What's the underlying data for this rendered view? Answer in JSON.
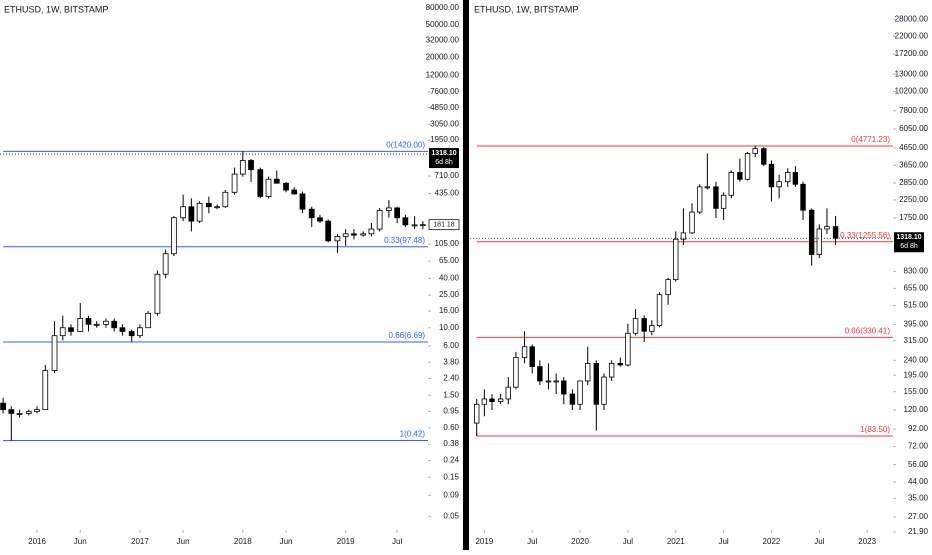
{
  "chart_data": [
    {
      "type": "candlestick",
      "title": "ETHUSD, 1W, BITSTAMP",
      "log_scale": true,
      "xlim": [
        2015.64,
        2019.8
      ],
      "ylim": [
        0.034,
        100000
      ],
      "xticks": [
        2016,
        {
          "value": 2016.42,
          "label": "Jun"
        },
        2017,
        {
          "value": 2017.42,
          "label": "Jun"
        },
        2018,
        {
          "value": 2018.42,
          "label": "Jun"
        },
        2019,
        {
          "value": 2019.5,
          "label": "Jul"
        }
      ],
      "yticks": [
        {
          "value": 80000,
          "label": "80000.00"
        },
        {
          "value": 50000,
          "label": "50000.00"
        },
        {
          "value": 32000,
          "label": "32000.00"
        },
        {
          "value": 20000,
          "label": "20000.00"
        },
        {
          "value": 12000,
          "label": "12000.00"
        },
        {
          "value": 7600,
          "label": "7600.00"
        },
        {
          "value": 4850,
          "label": "4850.00"
        },
        {
          "value": 3050,
          "label": "3050.00"
        },
        {
          "value": 1950,
          "label": "1950.00"
        },
        {
          "value": 710,
          "label": "710.00"
        },
        {
          "value": 435,
          "label": "435.00"
        },
        {
          "value": 105,
          "label": "105.00"
        },
        {
          "value": 65,
          "label": "65.00"
        },
        {
          "value": 40,
          "label": "40.00"
        },
        {
          "value": 25,
          "label": "25.00"
        },
        {
          "value": 16,
          "label": "16.00"
        },
        {
          "value": 10,
          "label": "10.00"
        },
        {
          "value": 6,
          "label": "6.00"
        },
        {
          "value": 3.8,
          "label": "3.80"
        },
        {
          "value": 2.4,
          "label": "2.40"
        },
        {
          "value": 1.5,
          "label": "1.50"
        },
        {
          "value": 0.95,
          "label": "0.95"
        },
        {
          "value": 0.6,
          "label": "0.60"
        },
        {
          "value": 0.38,
          "label": "0.38"
        },
        {
          "value": 0.24,
          "label": "0.24"
        },
        {
          "value": 0.15,
          "label": "0.15"
        },
        {
          "value": 0.09,
          "label": "0.09"
        },
        {
          "value": 0.05,
          "label": "0.05"
        }
      ],
      "x": [
        2015.67,
        2015.75,
        2015.83,
        2015.92,
        2016.0,
        2016.08,
        2016.17,
        2016.25,
        2016.33,
        2016.42,
        2016.5,
        2016.58,
        2016.67,
        2016.75,
        2016.83,
        2016.92,
        2017.0,
        2017.08,
        2017.17,
        2017.25,
        2017.33,
        2017.42,
        2017.5,
        2017.58,
        2017.67,
        2017.75,
        2017.83,
        2017.92,
        2018.0,
        2018.08,
        2018.17,
        2018.25,
        2018.33,
        2018.42,
        2018.5,
        2018.58,
        2018.67,
        2018.75,
        2018.83,
        2018.92,
        2019.0,
        2019.08,
        2019.17,
        2019.25,
        2019.33,
        2019.42,
        2019.5,
        2019.58,
        2019.67,
        2019.75
      ],
      "open": [
        1.2,
        1.0,
        0.9,
        0.9,
        0.95,
        1.0,
        3.0,
        8,
        10,
        9,
        13,
        11,
        11,
        12,
        10,
        9,
        8,
        10,
        15,
        45,
        80,
        220,
        300,
        200,
        330,
        300,
        300,
        450,
        750,
        1100,
        850,
        400,
        650,
        580,
        480,
        430,
        280,
        220,
        200,
        115,
        130,
        140,
        135,
        140,
        160,
        270,
        290,
        220,
        180,
        180
      ],
      "high": [
        1.4,
        1.1,
        1.0,
        1.0,
        1.1,
        3.5,
        12,
        14,
        11,
        20,
        14,
        12,
        13,
        13,
        11,
        9.5,
        11,
        16,
        50,
        90,
        230,
        420,
        380,
        350,
        400,
        320,
        480,
        900,
        1420,
        1150,
        900,
        700,
        830,
        600,
        520,
        460,
        300,
        240,
        210,
        140,
        160,
        160,
        150,
        190,
        290,
        360,
        300,
        240,
        230,
        200
      ],
      "low": [
        0.9,
        0.42,
        0.8,
        0.85,
        0.9,
        1.0,
        2.8,
        7,
        8,
        9,
        9,
        10,
        10,
        9,
        8,
        6.69,
        7.5,
        10,
        14,
        40,
        75,
        200,
        150,
        190,
        250,
        280,
        290,
        420,
        700,
        600,
        380,
        380,
        600,
        450,
        420,
        250,
        170,
        190,
        110,
        82,
        100,
        120,
        130,
        130,
        150,
        220,
        190,
        170,
        160,
        160
      ],
      "close": [
        1.0,
        0.9,
        0.9,
        0.95,
        1.0,
        3.0,
        8,
        10,
        9,
        13,
        11,
        11,
        12,
        10,
        9,
        8,
        10,
        15,
        45,
        80,
        220,
        300,
        200,
        330,
        300,
        300,
        450,
        750,
        1100,
        850,
        400,
        650,
        580,
        480,
        430,
        280,
        220,
        200,
        115,
        130,
        140,
        135,
        140,
        160,
        270,
        290,
        220,
        180,
        180,
        181.18
      ],
      "up_color": "#ffffff",
      "down_color": "#000000",
      "wick_color": "#000000",
      "levels": [
        {
          "value": 1420,
          "label": "0(1420.00)"
        },
        {
          "value": 97.48,
          "label": "0.33(97.48)"
        },
        {
          "value": 6.69,
          "label": "0.66(6.69)"
        },
        {
          "value": 0.42,
          "label": "1(0.42)"
        }
      ],
      "level_color": "#2962ff",
      "last_price": {
        "value": 1318.1,
        "label": "1318.10"
      },
      "countdown": "6d 8h",
      "price_marker": 181.18
    },
    {
      "type": "candlestick",
      "title": "ETHUSD, 1W, BITSTAMP",
      "log_scale": true,
      "xlim": [
        2018.85,
        2023.27
      ],
      "ylim": [
        22.5,
        36600
      ],
      "xticks": [
        2019,
        {
          "value": 2019.5,
          "label": "Jul"
        },
        2020,
        {
          "value": 2020.5,
          "label": "Jul"
        },
        2021,
        {
          "value": 2021.5,
          "label": "Jul"
        },
        2022,
        {
          "value": 2022.5,
          "label": "Jul"
        },
        2023
      ],
      "yticks": [
        {
          "value": 28000,
          "label": "28000.00"
        },
        {
          "value": 22000,
          "label": "22000.00"
        },
        {
          "value": 17200,
          "label": "17200.00"
        },
        {
          "value": 13000,
          "label": "13000.00"
        },
        {
          "value": 10200,
          "label": "10200.00"
        },
        {
          "value": 7800,
          "label": "7800.00"
        },
        {
          "value": 6050,
          "label": "6050.00"
        },
        {
          "value": 4650,
          "label": "4650.00"
        },
        {
          "value": 3650,
          "label": "3650.00"
        },
        {
          "value": 2850,
          "label": "2850.00"
        },
        {
          "value": 2250,
          "label": "2250.00"
        },
        {
          "value": 1750,
          "label": "1750.00"
        },
        {
          "value": 830,
          "label": "830.00"
        },
        {
          "value": 655,
          "label": "655.00"
        },
        {
          "value": 515,
          "label": "515.00"
        },
        {
          "value": 395,
          "label": "395.00"
        },
        {
          "value": 315,
          "label": "315.00"
        },
        {
          "value": 240,
          "label": "240.00"
        },
        {
          "value": 195,
          "label": "195.00"
        },
        {
          "value": 155,
          "label": "155.00"
        },
        {
          "value": 120,
          "label": "120.00"
        },
        {
          "value": 92,
          "label": "92.00"
        },
        {
          "value": 72,
          "label": "72.00"
        },
        {
          "value": 56,
          "label": "56.00"
        },
        {
          "value": 44,
          "label": "44.00"
        },
        {
          "value": 35,
          "label": "35.00"
        },
        {
          "value": 27,
          "label": "27.00"
        },
        {
          "value": 21.9,
          "label": "21.90"
        }
      ],
      "x": [
        2018.92,
        2019.0,
        2019.08,
        2019.17,
        2019.25,
        2019.33,
        2019.42,
        2019.5,
        2019.58,
        2019.67,
        2019.75,
        2019.83,
        2019.92,
        2020.0,
        2020.08,
        2020.17,
        2020.25,
        2020.33,
        2020.42,
        2020.5,
        2020.58,
        2020.67,
        2020.75,
        2020.83,
        2020.92,
        2021.0,
        2021.08,
        2021.17,
        2021.25,
        2021.33,
        2021.42,
        2021.5,
        2021.58,
        2021.67,
        2021.75,
        2021.83,
        2021.92,
        2022.0,
        2022.08,
        2022.17,
        2022.25,
        2022.33,
        2022.42,
        2022.5,
        2022.58,
        2022.67
      ],
      "open": [
        100,
        130,
        140,
        135,
        140,
        165,
        250,
        290,
        220,
        180,
        180,
        180,
        150,
        130,
        180,
        230,
        130,
        190,
        230,
        225,
        350,
        430,
        360,
        390,
        600,
        740,
        1300,
        1420,
        1900,
        2700,
        2700,
        2000,
        2400,
        3300,
        3000,
        4300,
        4600,
        3700,
        2700,
        2900,
        3300,
        2800,
        1950,
        1050,
        1500,
        1550
      ],
      "high": [
        140,
        160,
        150,
        150,
        190,
        270,
        360,
        300,
        240,
        230,
        200,
        190,
        160,
        180,
        290,
        240,
        200,
        240,
        250,
        400,
        490,
        450,
        420,
        620,
        760,
        1450,
        2000,
        2150,
        2800,
        4300,
        2900,
        2500,
        3400,
        4000,
        4400,
        4800,
        4700,
        3900,
        3200,
        3500,
        3600,
        2900,
        2000,
        1600,
        2000,
        1800
      ],
      "low": [
        83.5,
        110,
        120,
        130,
        130,
        160,
        230,
        200,
        170,
        160,
        150,
        130,
        120,
        120,
        170,
        90,
        120,
        180,
        220,
        220,
        340,
        310,
        340,
        380,
        520,
        720,
        1200,
        1400,
        1850,
        2600,
        1750,
        1700,
        2300,
        2900,
        2950,
        4100,
        3600,
        2200,
        2300,
        2700,
        2700,
        1700,
        900,
        1000,
        1400,
        1200
      ],
      "close": [
        130,
        140,
        135,
        140,
        165,
        250,
        290,
        220,
        180,
        180,
        180,
        150,
        130,
        180,
        230,
        130,
        190,
        230,
        225,
        350,
        430,
        360,
        390,
        600,
        740,
        1300,
        1420,
        1900,
        2700,
        2700,
        2000,
        2400,
        3300,
        3000,
        4300,
        4600,
        3700,
        2700,
        2900,
        3300,
        2800,
        1950,
        1050,
        1500,
        1550,
        1318.1
      ],
      "up_color": "#ffffff",
      "down_color": "#000000",
      "wick_color": "#000000",
      "levels": [
        {
          "value": 4771.23,
          "label": "0(4771.23)"
        },
        {
          "value": 1255.56,
          "label": "0.33(1255.56)"
        },
        {
          "value": 330.41,
          "label": "0.66(330.41)"
        },
        {
          "value": 83.5,
          "label": "1(83.50)"
        }
      ],
      "level_color": "#f23645",
      "last_price": {
        "value": 1318.1,
        "label": "1318.10"
      },
      "countdown": "6d 8h"
    }
  ]
}
